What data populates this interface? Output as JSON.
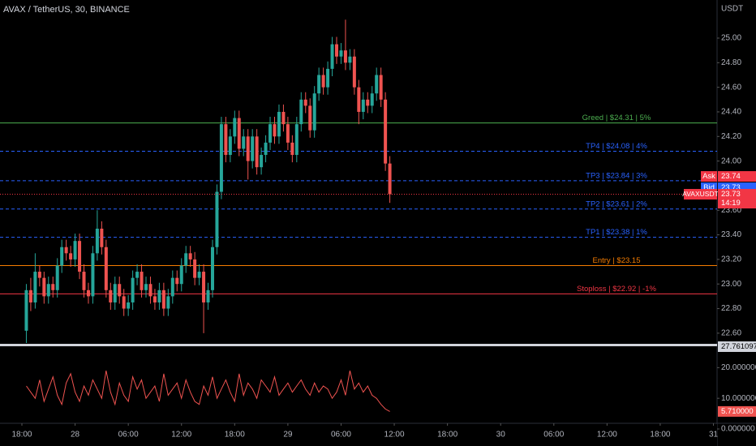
{
  "chart_data": [
    {
      "type": "candlestick",
      "title": "AVAX / TetherUS, 30, BINANCE",
      "axis_unit": "USDT",
      "up_color": "#26a69a",
      "down_color": "#ef5350",
      "xlim": [
        -2.47,
        78.41
      ],
      "xticks": [
        {
          "value": 0,
          "label": "18:00"
        },
        {
          "value": 6,
          "label": "28"
        },
        {
          "value": 12,
          "label": "06:00"
        },
        {
          "value": 18,
          "label": "12:00"
        },
        {
          "value": 24,
          "label": "18:00"
        },
        {
          "value": 30,
          "label": "29"
        },
        {
          "value": 36,
          "label": "06:00"
        },
        {
          "value": 42,
          "label": "12:00"
        },
        {
          "value": 48,
          "label": "18:00"
        },
        {
          "value": 54,
          "label": "30"
        },
        {
          "value": 60,
          "label": "06:00"
        },
        {
          "value": 66,
          "label": "12:00"
        },
        {
          "value": 72,
          "label": "18:00"
        },
        {
          "value": 78,
          "label": "31"
        }
      ],
      "ylim": [
        22.52,
        25.31
      ],
      "yticks": [
        {
          "value": 22.6,
          "label": "22.60"
        },
        {
          "value": 22.8,
          "label": "22.80"
        },
        {
          "value": 23.0,
          "label": "23.00"
        },
        {
          "value": 23.2,
          "label": "23.20"
        },
        {
          "value": 23.4,
          "label": "23.40"
        },
        {
          "value": 23.6,
          "label": "23.60"
        },
        {
          "value": 24.0,
          "label": "24.00"
        },
        {
          "value": 24.2,
          "label": "24.20"
        },
        {
          "value": 24.4,
          "label": "24.40"
        },
        {
          "value": 24.6,
          "label": "24.60"
        },
        {
          "value": 24.8,
          "label": "24.80"
        },
        {
          "value": 25.0,
          "label": "25.00"
        }
      ],
      "x": [
        0.5,
        1,
        1.5,
        2,
        2.5,
        3,
        3.5,
        4,
        4.5,
        5,
        5.5,
        6,
        6.5,
        7,
        7.5,
        8,
        8.5,
        9,
        9.5,
        10,
        10.5,
        11,
        11.5,
        12,
        12.5,
        13,
        13.5,
        14,
        14.5,
        15,
        15.5,
        16,
        16.5,
        17,
        17.5,
        18,
        18.5,
        19,
        19.5,
        20,
        20.5,
        21,
        21.5,
        22,
        22.5,
        23,
        23.5,
        24,
        24.5,
        25,
        25.5,
        26,
        26.5,
        27,
        27.5,
        28,
        28.5,
        29,
        29.5,
        30,
        30.5,
        31,
        31.5,
        32,
        32.5,
        33,
        33.5,
        34,
        34.5,
        35,
        35.5,
        36,
        36.5,
        37,
        37.5,
        38,
        38.5,
        39,
        39.5,
        40,
        40.5,
        41,
        41.5
      ],
      "open": [
        22.62,
        22.95,
        22.85,
        23.1,
        23.05,
        22.9,
        23.0,
        22.95,
        23.15,
        23.3,
        23.25,
        23.2,
        23.35,
        23.1,
        22.95,
        22.9,
        23.25,
        23.45,
        23.3,
        22.95,
        22.85,
        23.0,
        22.9,
        22.8,
        22.85,
        23.05,
        23.1,
        22.95,
        23.0,
        22.9,
        22.85,
        22.95,
        22.8,
        22.9,
        23.05,
        23.0,
        23.15,
        23.25,
        23.2,
        23.05,
        23.1,
        22.85,
        22.95,
        23.3,
        23.75,
        24.3,
        24.05,
        24.2,
        24.35,
        24.1,
        24.2,
        24.0,
        24.2,
        23.95,
        24.05,
        24.15,
        24.3,
        24.2,
        24.4,
        24.3,
        24.15,
        24.05,
        24.3,
        24.5,
        24.45,
        24.25,
        24.55,
        24.7,
        24.6,
        24.75,
        24.95,
        24.85,
        24.9,
        24.8,
        24.85,
        24.6,
        24.4,
        24.5,
        24.45,
        24.55,
        24.7,
        24.5,
        23.98
      ],
      "high": [
        23.0,
        23.05,
        23.25,
        23.15,
        23.1,
        23.06,
        23.06,
        23.21,
        23.36,
        23.36,
        23.31,
        23.41,
        23.41,
        23.16,
        23.01,
        23.31,
        23.6,
        23.51,
        23.36,
        23.01,
        23.06,
        23.06,
        22.96,
        22.91,
        23.11,
        23.16,
        23.16,
        23.06,
        23.06,
        22.96,
        23.01,
        23.01,
        22.96,
        23.11,
        23.11,
        23.21,
        23.31,
        23.31,
        23.26,
        23.16,
        23.16,
        23.01,
        23.36,
        23.81,
        24.36,
        24.36,
        24.26,
        24.41,
        24.41,
        24.26,
        24.26,
        24.26,
        24.26,
        24.11,
        24.21,
        24.36,
        24.36,
        24.46,
        24.46,
        24.36,
        24.21,
        24.36,
        24.56,
        24.56,
        24.51,
        24.61,
        24.76,
        24.76,
        24.81,
        25.01,
        25.01,
        24.96,
        25.15,
        24.91,
        24.91,
        24.66,
        24.56,
        24.56,
        24.61,
        24.76,
        24.76,
        24.56,
        24.04
      ],
      "low": [
        22.52,
        22.78,
        22.8,
        22.98,
        22.84,
        22.84,
        22.89,
        22.89,
        23.09,
        23.19,
        23.14,
        23.14,
        23.04,
        22.89,
        22.84,
        22.84,
        23.19,
        23.24,
        22.89,
        22.79,
        22.79,
        22.84,
        22.74,
        22.74,
        22.79,
        22.99,
        22.89,
        22.89,
        22.84,
        22.79,
        22.79,
        22.74,
        22.74,
        22.84,
        22.94,
        22.94,
        23.09,
        23.14,
        22.99,
        22.99,
        22.6,
        22.79,
        22.89,
        23.24,
        23.69,
        23.99,
        23.99,
        24.14,
        24.04,
        24.04,
        23.85,
        23.94,
        23.89,
        23.89,
        23.99,
        24.09,
        24.14,
        24.14,
        24.24,
        24.09,
        23.99,
        23.99,
        24.24,
        24.39,
        24.19,
        24.19,
        24.49,
        24.54,
        24.54,
        24.69,
        24.79,
        24.79,
        24.74,
        24.74,
        24.54,
        24.3,
        24.34,
        24.39,
        24.39,
        24.49,
        24.44,
        23.92,
        23.66
      ],
      "close": [
        22.95,
        22.85,
        23.1,
        23.05,
        22.9,
        23.0,
        22.95,
        23.15,
        23.3,
        23.25,
        23.2,
        23.35,
        23.1,
        22.95,
        22.9,
        23.25,
        23.45,
        23.3,
        22.95,
        22.85,
        23.0,
        22.9,
        22.8,
        22.85,
        23.05,
        23.1,
        22.95,
        23.0,
        22.9,
        22.85,
        22.95,
        22.8,
        22.9,
        23.05,
        23.0,
        23.15,
        23.25,
        23.2,
        23.05,
        23.1,
        22.85,
        22.95,
        23.3,
        23.75,
        24.3,
        24.05,
        24.2,
        24.35,
        24.1,
        24.2,
        24.0,
        24.2,
        23.95,
        24.05,
        24.15,
        24.3,
        24.2,
        24.4,
        24.3,
        24.15,
        24.05,
        24.3,
        24.5,
        24.45,
        24.25,
        24.55,
        24.7,
        24.6,
        24.75,
        24.95,
        24.85,
        24.9,
        24.8,
        24.85,
        24.6,
        24.4,
        24.5,
        24.45,
        24.55,
        24.7,
        24.5,
        23.98,
        23.73
      ],
      "levels": [
        {
          "value": 24.31,
          "label": "Greed | $24.31 | 5%",
          "color": "#4caf50",
          "style": "solid"
        },
        {
          "value": 24.08,
          "label": "TP4 | $24.08 | 4%",
          "color": "#2962ff",
          "style": "dashed"
        },
        {
          "value": 23.84,
          "label": "TP3 | $23.84 | 3%",
          "color": "#2962ff",
          "style": "dashed"
        },
        {
          "value": 23.61,
          "label": "TP2 | $23.61 | 2%",
          "color": "#2962ff",
          "style": "dashed"
        },
        {
          "value": 23.38,
          "label": "TP1 | $23.38 | 1%",
          "color": "#2962ff",
          "style": "dashed"
        },
        {
          "value": 23.15,
          "label": "Entry | $23.15",
          "color": "#f57c00",
          "style": "solid"
        },
        {
          "value": 22.92,
          "label": "Stoploss | $22.92 | -1%",
          "color": "#f23645",
          "style": "solid"
        }
      ],
      "ask": {
        "label": "Ask",
        "value": 23.74,
        "color": "#f23645"
      },
      "bid": {
        "label": "Bid",
        "value": 23.73,
        "color": "#2962ff"
      },
      "last": {
        "label": "AVAXUSDT",
        "value": 23.73,
        "countdown": "14:19",
        "color": "#f23645"
      }
    },
    {
      "type": "line",
      "color": "#ef5350",
      "xlim": [
        -2.47,
        78.41
      ],
      "ylim": [
        0,
        27.761097
      ],
      "yticks": [
        {
          "value": 0,
          "label": "0.000000"
        },
        {
          "value": 10,
          "label": "10.000000"
        },
        {
          "value": 20,
          "label": "20.000000"
        }
      ],
      "x": [
        0.5,
        1,
        1.5,
        2,
        2.5,
        3,
        3.5,
        4,
        4.5,
        5,
        5.5,
        6,
        6.5,
        7,
        7.5,
        8,
        8.5,
        9,
        9.5,
        10,
        10.5,
        11,
        11.5,
        12,
        12.5,
        13,
        13.5,
        14,
        14.5,
        15,
        15.5,
        16,
        16.5,
        17,
        17.5,
        18,
        18.5,
        19,
        19.5,
        20,
        20.5,
        21,
        21.5,
        22,
        22.5,
        23,
        23.5,
        24,
        24.5,
        25,
        25.5,
        26,
        26.5,
        27,
        27.5,
        28,
        28.5,
        29,
        29.5,
        30,
        30.5,
        31,
        31.5,
        32,
        32.5,
        33,
        33.5,
        34,
        34.5,
        35,
        35.5,
        36,
        36.5,
        37,
        37.5,
        38,
        38.5,
        39,
        39.5,
        40,
        40.5,
        41,
        41.5
      ],
      "values": [
        14,
        12,
        10,
        16,
        9,
        13,
        17,
        11,
        8,
        15,
        18,
        12,
        9,
        14,
        11,
        16,
        13,
        10,
        19,
        12,
        8,
        15,
        11,
        9,
        17,
        13,
        16,
        10,
        12,
        14,
        9,
        18,
        11,
        13,
        15,
        10,
        16,
        12,
        9,
        8,
        14,
        11,
        17,
        10,
        13,
        16,
        12,
        9,
        18,
        11,
        15,
        13,
        10,
        16,
        14,
        12,
        17,
        11,
        13,
        15,
        12,
        14,
        16,
        13,
        11,
        15,
        12,
        14,
        13,
        10,
        12,
        16,
        11,
        19,
        13,
        15,
        12,
        14,
        11,
        10,
        8,
        6.5,
        5.71
      ],
      "last_value_label": "5.710000"
    }
  ]
}
